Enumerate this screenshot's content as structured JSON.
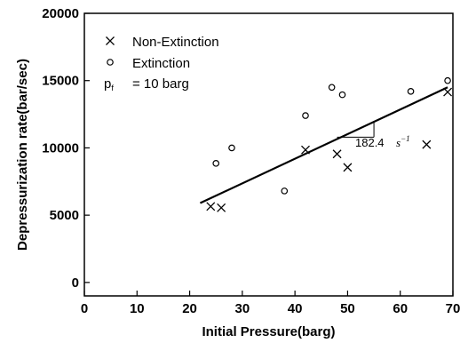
{
  "chart_data": {
    "type": "scatter",
    "xlabel": "Initial Pressure(barg)",
    "ylabel": "Depressurization rate(bar/sec)",
    "xlim": [
      0,
      70
    ],
    "ylim": [
      -1000,
      20000
    ],
    "xticks": [
      0,
      10,
      20,
      30,
      40,
      50,
      60,
      70
    ],
    "yticks": [
      0,
      5000,
      10000,
      15000,
      20000
    ],
    "grid": false,
    "legend_position": "top-left",
    "series": [
      {
        "name": "Non-Extinction",
        "marker": "x",
        "points": [
          {
            "x": 24,
            "y": 5650
          },
          {
            "x": 26,
            "y": 5550
          },
          {
            "x": 42,
            "y": 9850
          },
          {
            "x": 48,
            "y": 9550
          },
          {
            "x": 50,
            "y": 8550
          },
          {
            "x": 65,
            "y": 10250
          },
          {
            "x": 69,
            "y": 14150
          }
        ]
      },
      {
        "name": "Extinction",
        "marker": "o",
        "points": [
          {
            "x": 25,
            "y": 8850
          },
          {
            "x": 28,
            "y": 10000
          },
          {
            "x": 38,
            "y": 6800
          },
          {
            "x": 42,
            "y": 12400
          },
          {
            "x": 47,
            "y": 14500
          },
          {
            "x": 49,
            "y": 13950
          },
          {
            "x": 62,
            "y": 14200
          },
          {
            "x": 69,
            "y": 15000
          }
        ]
      }
    ],
    "fit_line": {
      "x": [
        22,
        69
      ],
      "y": [
        5900,
        14500
      ],
      "color": "#000000"
    },
    "slope_triangle": {
      "x": [
        48,
        55
      ],
      "y": [
        10800,
        12000
      ]
    },
    "legend_note": {
      "symbol_main": "p",
      "symbol_sub": "f",
      "text": "= 10 barg"
    },
    "annotation": {
      "value": "182.4",
      "unit": "s",
      "exponent": "−1"
    }
  }
}
